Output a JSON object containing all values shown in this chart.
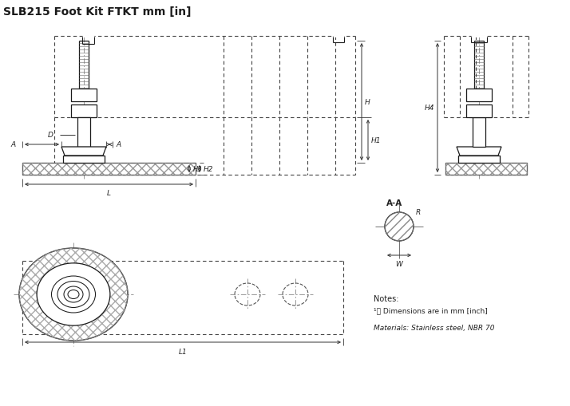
{
  "title": "SLB215 Foot Kit FTKT mm [in]",
  "notes_line1": "Notes:",
  "notes_line2": "1) Dimensions are in mm [inch]",
  "notes_line3": "Materials: Stainless steel, NBR 70",
  "bg_color": "#ffffff",
  "line_color": "#1a1a1a",
  "dim_color": "#222222",
  "gray": "#888888"
}
